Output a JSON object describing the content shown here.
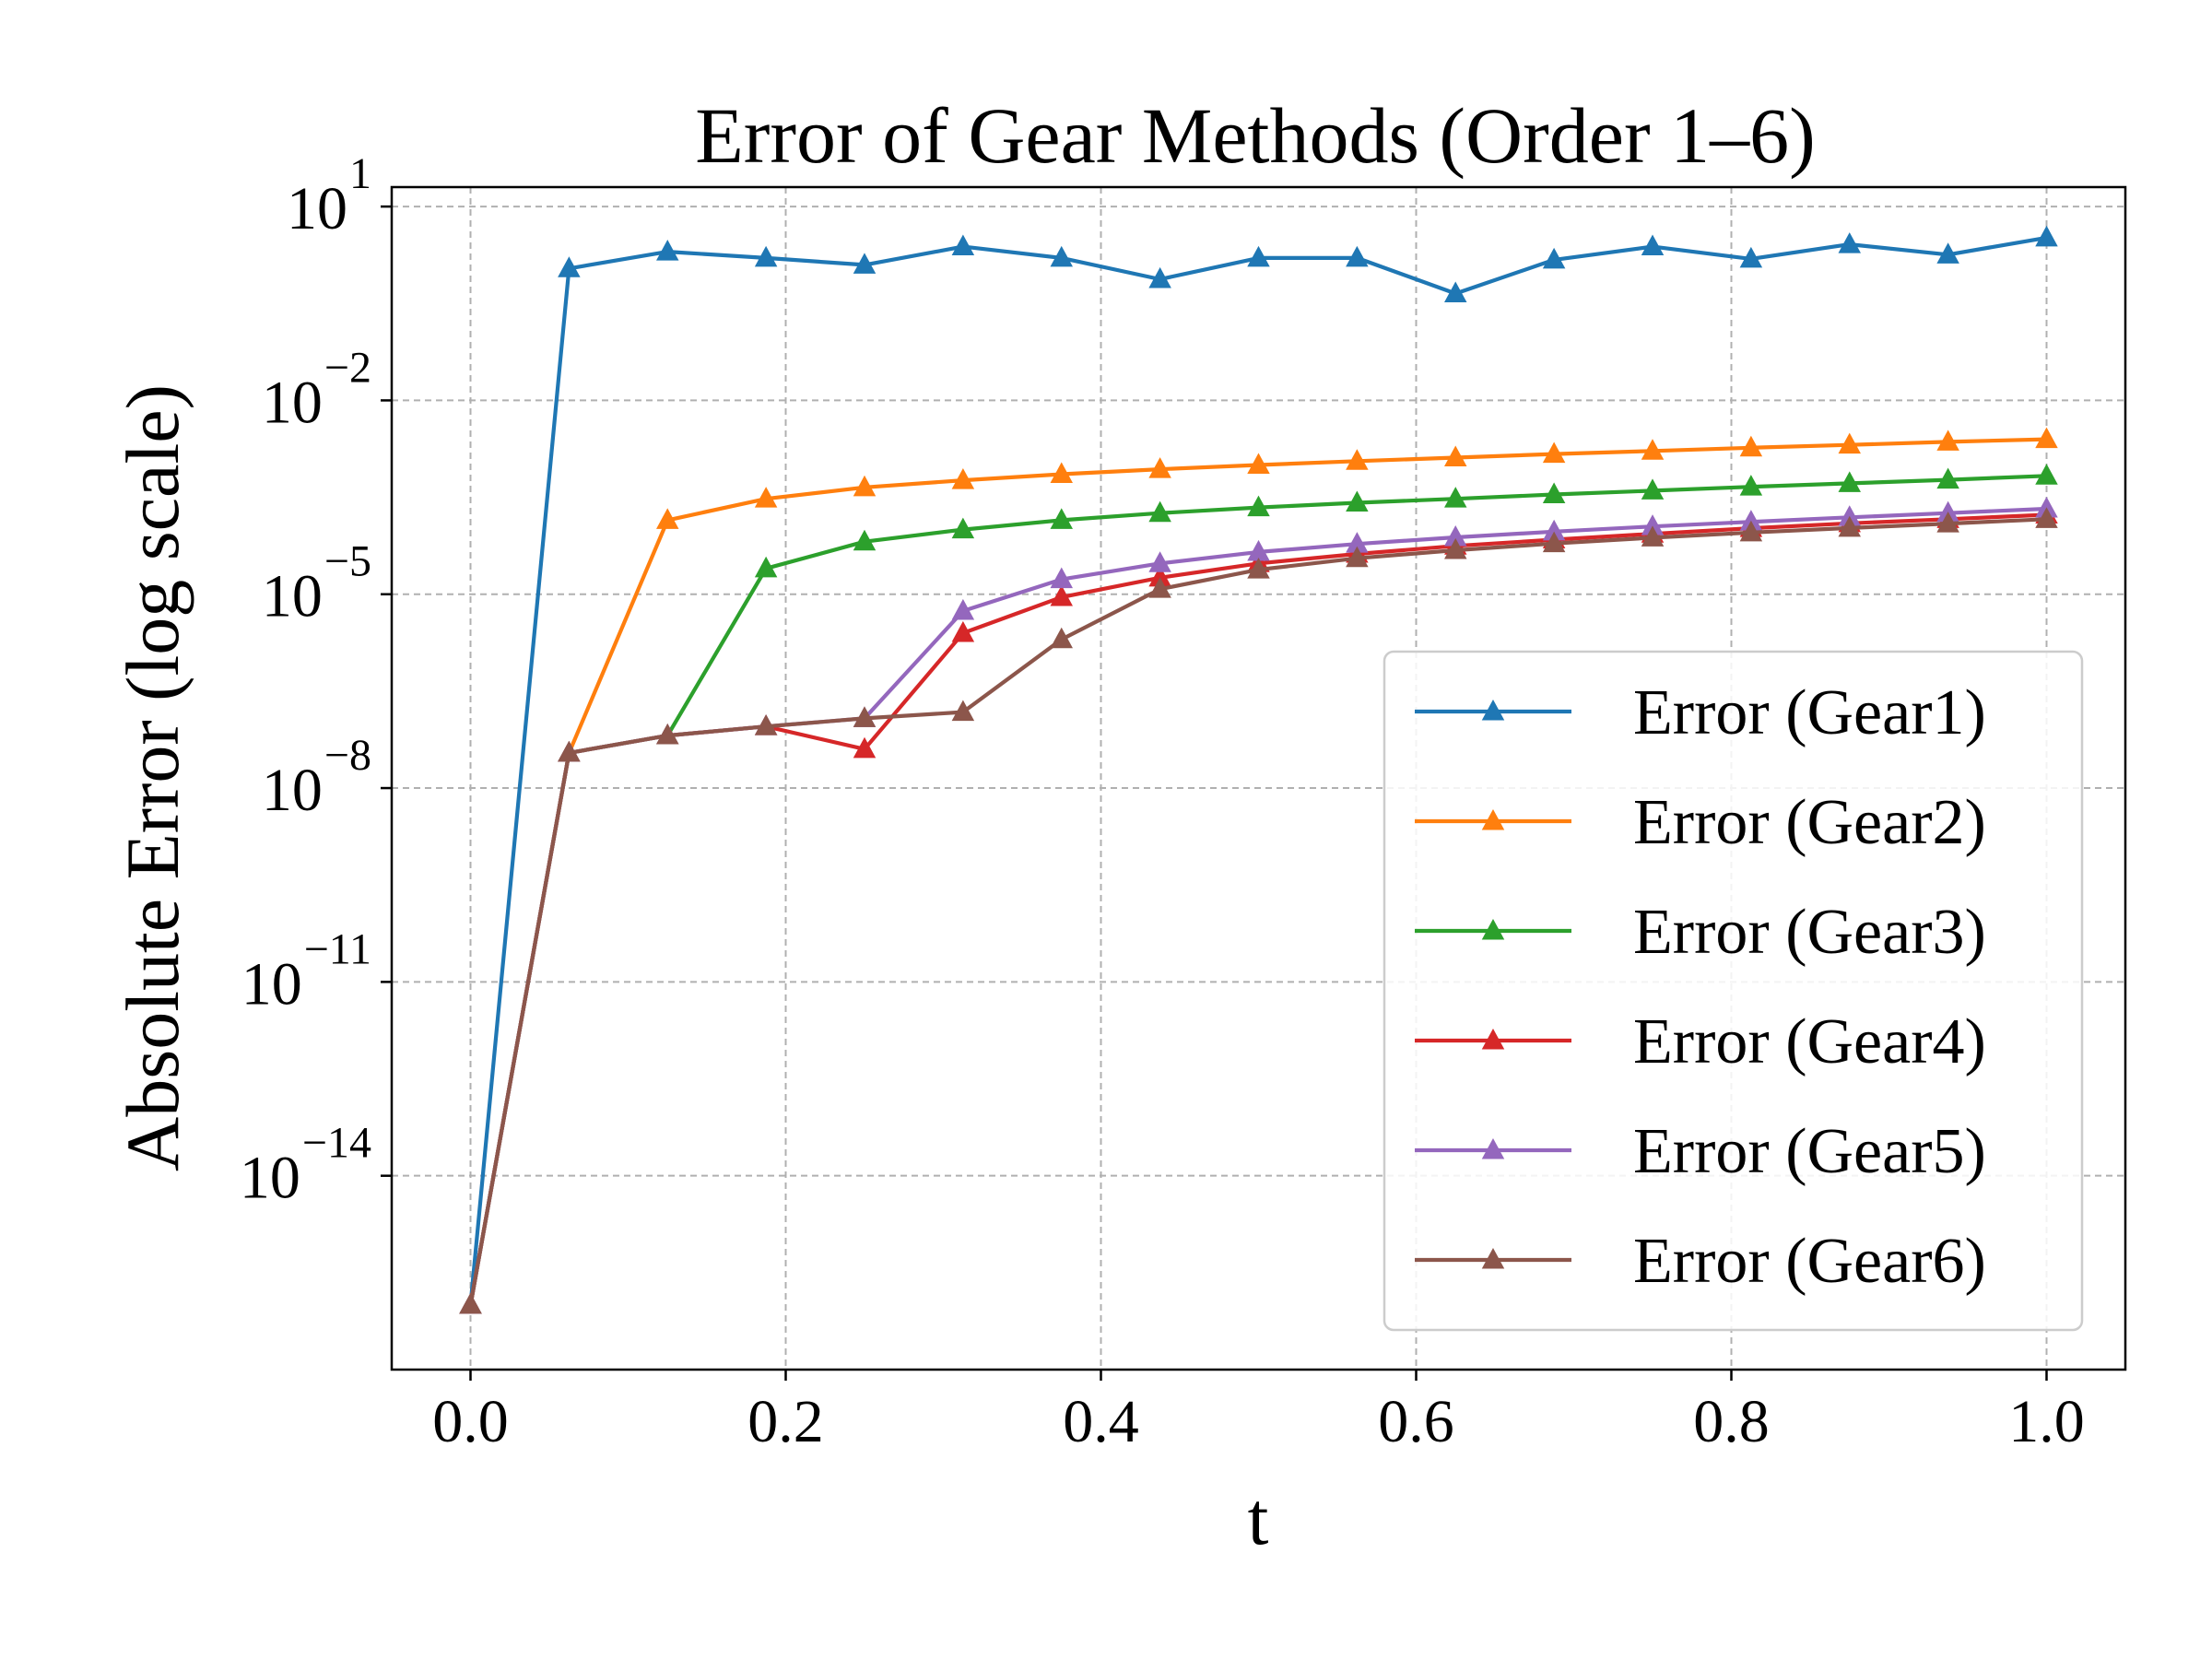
{
  "chart_data": {
    "type": "line",
    "title": "Error of Gear Methods (Order 1–6)",
    "xlabel": "t",
    "ylabel": "Absolute Error (log scale)",
    "yscale": "log",
    "xlim": [
      -0.05,
      1.05
    ],
    "ylim": [
      1e-17,
      20
    ],
    "grid": true,
    "legend_position": "lower right",
    "marker": "triangle-up",
    "xticks": [
      0.0,
      0.2,
      0.4,
      0.6,
      0.8,
      1.0
    ],
    "xtick_labels": [
      "0.0",
      "0.2",
      "0.4",
      "0.6",
      "0.8",
      "1.0"
    ],
    "yticks": [
      10.0,
      0.01,
      1e-05,
      1e-08,
      1e-11,
      1e-14
    ],
    "ytick_labels": [
      {
        "base": "10",
        "exp": "1"
      },
      {
        "base": "10",
        "exp": "−2"
      },
      {
        "base": "10",
        "exp": "−5"
      },
      {
        "base": "10",
        "exp": "−8"
      },
      {
        "base": "10",
        "exp": "−11"
      },
      {
        "base": "10",
        "exp": "−14"
      }
    ],
    "x": [
      0.0,
      0.0625,
      0.125,
      0.1875,
      0.25,
      0.3125,
      0.375,
      0.4375,
      0.5,
      0.5625,
      0.625,
      0.6875,
      0.75,
      0.8125,
      0.875,
      0.9375,
      1.0
    ],
    "series": [
      {
        "name": "Error (Gear1)",
        "color": "#1f77b4",
        "values": [
          1e-16,
          1.1,
          2.0,
          1.6,
          1.25,
          2.4,
          1.6,
          0.75,
          1.6,
          1.6,
          0.45,
          1.5,
          2.4,
          1.55,
          2.6,
          1.8,
          3.3
        ]
      },
      {
        "name": "Error (Gear2)",
        "color": "#ff7f0e",
        "values": [
          1e-16,
          3.5e-08,
          0.00014,
          0.0003,
          0.00045,
          0.00058,
          0.00072,
          0.00086,
          0.001,
          0.00115,
          0.0013,
          0.00148,
          0.00165,
          0.00185,
          0.00205,
          0.00228,
          0.0025
        ]
      },
      {
        "name": "Error (Gear3)",
        "color": "#2ca02c",
        "values": [
          1e-16,
          3.5e-08,
          6.5e-08,
          2.5e-05,
          6.5e-05,
          0.0001,
          0.00014,
          0.00018,
          0.00022,
          0.00026,
          0.0003,
          0.00035,
          0.0004,
          0.00046,
          0.00052,
          0.00059,
          0.00068
        ]
      },
      {
        "name": "Error (Gear4)",
        "color": "#d62728",
        "values": [
          1e-16,
          3.5e-08,
          6.5e-08,
          9e-08,
          4e-08,
          2.5e-06,
          9e-06,
          1.8e-05,
          3e-05,
          4.2e-05,
          5.6e-05,
          7e-05,
          8.6e-05,
          0.000105,
          0.000125,
          0.000145,
          0.00017
        ]
      },
      {
        "name": "Error (Gear5)",
        "color": "#9467bd",
        "values": [
          1e-16,
          3.5e-08,
          6.5e-08,
          9e-08,
          1.2e-07,
          5.5e-06,
          1.7e-05,
          3e-05,
          4.5e-05,
          6e-05,
          7.6e-05,
          9.3e-05,
          0.000112,
          0.000132,
          0.000155,
          0.00018,
          0.00021
        ]
      },
      {
        "name": "Error (Gear6)",
        "color": "#8c564b",
        "values": [
          1e-16,
          3.5e-08,
          6.5e-08,
          9e-08,
          1.2e-07,
          1.5e-07,
          2e-06,
          1.2e-05,
          2.4e-05,
          3.6e-05,
          4.8e-05,
          6.1e-05,
          7.5e-05,
          9e-05,
          0.000106,
          0.000124,
          0.000145
        ]
      }
    ]
  }
}
